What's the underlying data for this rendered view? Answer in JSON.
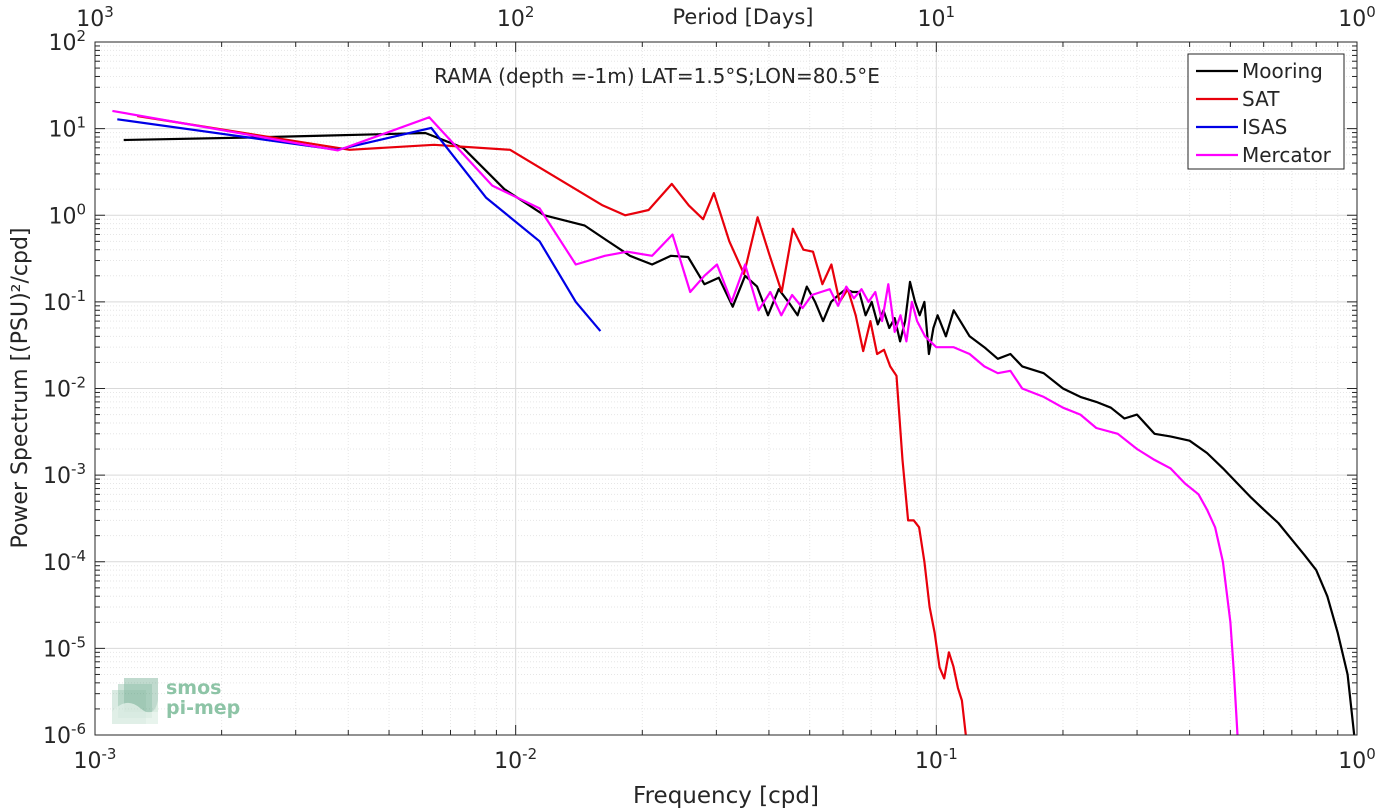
{
  "chart_data": {
    "type": "line",
    "title": "RAMA (depth =-1m) LAT=1.5°S;LON=80.5°E",
    "xlabel": "Frequency [cpd]",
    "ylabel": "Power Spectrum [(PSU)²/cpd]",
    "x2label": "Period [Days]",
    "xscale": "log",
    "yscale": "log",
    "xlim": [
      0.001,
      1
    ],
    "ylim": [
      1e-06,
      100
    ],
    "xticks": [
      0.001,
      0.01,
      0.1,
      1
    ],
    "yticks": [
      1e-06,
      1e-05,
      0.0001,
      0.001,
      0.01,
      0.1,
      1,
      10,
      100
    ],
    "xtick_labels": [
      {
        "base": "10",
        "exp": "-3"
      },
      {
        "base": "10",
        "exp": "-2"
      },
      {
        "base": "10",
        "exp": "-1"
      },
      {
        "base": "10",
        "exp": "0"
      }
    ],
    "x2tick_labels": [
      {
        "base": "10",
        "exp": "3"
      },
      {
        "base": "10",
        "exp": "2"
      },
      {
        "base": "10",
        "exp": "1"
      },
      {
        "base": "10",
        "exp": "0"
      }
    ],
    "ytick_labels": [
      {
        "base": "10",
        "exp": "-6"
      },
      {
        "base": "10",
        "exp": "-5"
      },
      {
        "base": "10",
        "exp": "-4"
      },
      {
        "base": "10",
        "exp": "-3"
      },
      {
        "base": "10",
        "exp": "-2"
      },
      {
        "base": "10",
        "exp": "-1"
      },
      {
        "base": "10",
        "exp": "0"
      },
      {
        "base": "10",
        "exp": "1"
      },
      {
        "base": "10",
        "exp": "2"
      }
    ],
    "grid": true,
    "legend_position": "top-right",
    "series": [
      {
        "name": "Mooring",
        "color": "#000000",
        "points": [
          [
            0.00117,
            7.4
          ],
          [
            0.00234,
            7.9
          ],
          [
            0.00351,
            8.3
          ],
          [
            0.00468,
            8.6
          ],
          [
            0.0061,
            8.9
          ],
          [
            0.0075,
            6.0
          ],
          [
            0.0094,
            2.0
          ],
          [
            0.0117,
            1.0
          ],
          [
            0.0146,
            0.76
          ],
          [
            0.0164,
            0.52
          ],
          [
            0.0187,
            0.34
          ],
          [
            0.0211,
            0.27
          ],
          [
            0.0234,
            0.34
          ],
          [
            0.0257,
            0.33
          ],
          [
            0.0281,
            0.16
          ],
          [
            0.0304,
            0.19
          ],
          [
            0.0328,
            0.088
          ],
          [
            0.0351,
            0.2
          ],
          [
            0.0375,
            0.15
          ],
          [
            0.0398,
            0.07
          ],
          [
            0.0422,
            0.14
          ],
          [
            0.0445,
            0.1
          ],
          [
            0.0468,
            0.07
          ],
          [
            0.0492,
            0.15
          ],
          [
            0.0515,
            0.1
          ],
          [
            0.0538,
            0.06
          ],
          [
            0.0562,
            0.1
          ],
          [
            0.0585,
            0.12
          ],
          [
            0.0609,
            0.14
          ],
          [
            0.0632,
            0.13
          ],
          [
            0.0656,
            0.13
          ],
          [
            0.0679,
            0.07
          ],
          [
            0.0702,
            0.1
          ],
          [
            0.0726,
            0.055
          ],
          [
            0.0749,
            0.08
          ],
          [
            0.0773,
            0.05
          ],
          [
            0.0796,
            0.065
          ],
          [
            0.082,
            0.035
          ],
          [
            0.0843,
            0.06
          ],
          [
            0.0866,
            0.17
          ],
          [
            0.089,
            0.1
          ],
          [
            0.0913,
            0.07
          ],
          [
            0.0937,
            0.1
          ],
          [
            0.096,
            0.025
          ],
          [
            0.0984,
            0.05
          ],
          [
            0.1007,
            0.07
          ],
          [
            0.1054,
            0.04
          ],
          [
            0.11,
            0.08
          ],
          [
            0.12,
            0.04
          ],
          [
            0.13,
            0.03
          ],
          [
            0.14,
            0.022
          ],
          [
            0.15,
            0.025
          ],
          [
            0.16,
            0.018
          ],
          [
            0.18,
            0.015
          ],
          [
            0.2,
            0.01
          ],
          [
            0.22,
            0.008
          ],
          [
            0.24,
            0.007
          ],
          [
            0.26,
            0.006
          ],
          [
            0.28,
            0.0045
          ],
          [
            0.3,
            0.005
          ],
          [
            0.33,
            0.003
          ],
          [
            0.36,
            0.0028
          ],
          [
            0.4,
            0.0025
          ],
          [
            0.44,
            0.0018
          ],
          [
            0.48,
            0.0012
          ],
          [
            0.52,
            0.0008
          ],
          [
            0.56,
            0.00055
          ],
          [
            0.6,
            0.0004
          ],
          [
            0.65,
            0.00028
          ],
          [
            0.7,
            0.00018
          ],
          [
            0.75,
            0.00012
          ],
          [
            0.8,
            8e-05
          ],
          [
            0.85,
            4e-05
          ],
          [
            0.9,
            1.5e-05
          ],
          [
            0.95,
            5e-06
          ],
          [
            0.985,
            1e-06
          ]
        ]
      },
      {
        "name": "SAT",
        "color": "#e8000b",
        "points": [
          [
            0.00126,
            14.0
          ],
          [
            0.00377,
            6.0
          ],
          [
            0.00403,
            5.7
          ],
          [
            0.0064,
            6.5
          ],
          [
            0.0097,
            5.7
          ],
          [
            0.0161,
            1.3
          ],
          [
            0.0182,
            1.0
          ],
          [
            0.0207,
            1.15
          ],
          [
            0.0235,
            2.3
          ],
          [
            0.0258,
            1.3
          ],
          [
            0.0279,
            0.9
          ],
          [
            0.0296,
            1.8
          ],
          [
            0.0322,
            0.5
          ],
          [
            0.0349,
            0.21
          ],
          [
            0.0376,
            0.95
          ],
          [
            0.0401,
            0.35
          ],
          [
            0.0429,
            0.13
          ],
          [
            0.0456,
            0.7
          ],
          [
            0.0483,
            0.4
          ],
          [
            0.0509,
            0.38
          ],
          [
            0.0536,
            0.16
          ],
          [
            0.0563,
            0.27
          ],
          [
            0.0589,
            0.1
          ],
          [
            0.0616,
            0.14
          ],
          [
            0.0643,
            0.07
          ],
          [
            0.067,
            0.027
          ],
          [
            0.0697,
            0.06
          ],
          [
            0.0723,
            0.025
          ],
          [
            0.0751,
            0.028
          ],
          [
            0.0777,
            0.018
          ],
          [
            0.0804,
            0.014
          ],
          [
            0.0831,
            0.0015
          ],
          [
            0.0857,
            0.0003
          ],
          [
            0.0884,
            0.0003
          ],
          [
            0.091,
            0.00025
          ],
          [
            0.0937,
            0.0001
          ],
          [
            0.0964,
            3e-05
          ],
          [
            0.0991,
            1.5e-05
          ],
          [
            0.1018,
            6e-06
          ],
          [
            0.1044,
            4.5e-06
          ],
          [
            0.1071,
            9e-06
          ],
          [
            0.1098,
            6.2e-06
          ],
          [
            0.1125,
            3.5e-06
          ],
          [
            0.115,
            2.5e-06
          ],
          [
            0.1175,
            1e-06
          ]
        ]
      },
      {
        "name": "ISAS",
        "color": "#0000e6",
        "points": [
          [
            0.00113,
            12.8
          ],
          [
            0.00376,
            5.7
          ],
          [
            0.0063,
            10.2
          ],
          [
            0.0085,
            1.6
          ],
          [
            0.0114,
            0.5
          ],
          [
            0.0139,
            0.1
          ],
          [
            0.0159,
            0.046
          ]
        ]
      },
      {
        "name": "Mercator",
        "color": "#ff00ff",
        "points": [
          [
            0.0011,
            16.0
          ],
          [
            0.00378,
            5.6
          ],
          [
            0.00623,
            13.5
          ],
          [
            0.0088,
            2.2
          ],
          [
            0.0114,
            1.2
          ],
          [
            0.0139,
            0.27
          ],
          [
            0.0163,
            0.34
          ],
          [
            0.0184,
            0.38
          ],
          [
            0.0211,
            0.34
          ],
          [
            0.0236,
            0.6
          ],
          [
            0.026,
            0.13
          ],
          [
            0.0281,
            0.2
          ],
          [
            0.0301,
            0.27
          ],
          [
            0.0326,
            0.1
          ],
          [
            0.0351,
            0.27
          ],
          [
            0.0378,
            0.08
          ],
          [
            0.0403,
            0.13
          ],
          [
            0.0428,
            0.07
          ],
          [
            0.0454,
            0.12
          ],
          [
            0.0481,
            0.085
          ],
          [
            0.0506,
            0.12
          ],
          [
            0.0532,
            0.13
          ],
          [
            0.0558,
            0.14
          ],
          [
            0.0584,
            0.09
          ],
          [
            0.0611,
            0.15
          ],
          [
            0.0637,
            0.11
          ],
          [
            0.0664,
            0.14
          ],
          [
            0.069,
            0.1
          ],
          [
            0.0716,
            0.13
          ],
          [
            0.0743,
            0.06
          ],
          [
            0.0769,
            0.16
          ],
          [
            0.0796,
            0.045
          ],
          [
            0.0822,
            0.07
          ],
          [
            0.0849,
            0.035
          ],
          [
            0.0875,
            0.1
          ],
          [
            0.09,
            0.06
          ],
          [
            0.094,
            0.04
          ],
          [
            0.1,
            0.03
          ],
          [
            0.11,
            0.03
          ],
          [
            0.12,
            0.025
          ],
          [
            0.13,
            0.018
          ],
          [
            0.14,
            0.015
          ],
          [
            0.15,
            0.016
          ],
          [
            0.16,
            0.01
          ],
          [
            0.18,
            0.008
          ],
          [
            0.2,
            0.006
          ],
          [
            0.22,
            0.005
          ],
          [
            0.24,
            0.0035
          ],
          [
            0.27,
            0.003
          ],
          [
            0.3,
            0.002
          ],
          [
            0.33,
            0.0015
          ],
          [
            0.36,
            0.0012
          ],
          [
            0.39,
            0.0008
          ],
          [
            0.42,
            0.0006
          ],
          [
            0.44,
            0.0004
          ],
          [
            0.46,
            0.00025
          ],
          [
            0.48,
            0.0001
          ],
          [
            0.5,
            2e-05
          ],
          [
            0.51,
            5e-06
          ],
          [
            0.52,
            1e-06
          ]
        ]
      }
    ]
  },
  "watermark": {
    "line1": "smos",
    "line2": "pi-mep"
  }
}
